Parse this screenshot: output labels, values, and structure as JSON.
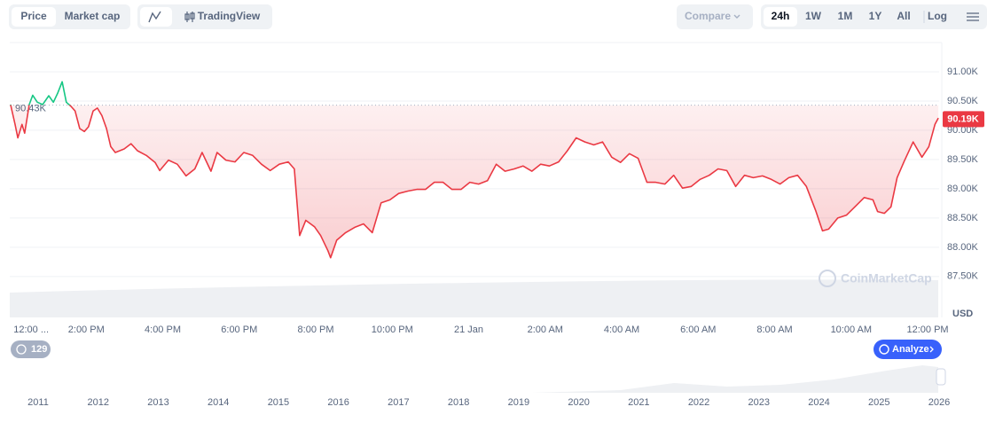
{
  "toolbar": {
    "left": [
      "Price",
      "Market cap"
    ],
    "tradingview": "TradingView",
    "compare": "Compare",
    "ranges": [
      "24h",
      "1W",
      "1M",
      "1Y",
      "All"
    ],
    "log": "Log"
  },
  "chart_data": {
    "type": "line",
    "x": [
      0.02,
      0.14,
      0.21,
      0.32,
      0.39,
      0.51,
      0.6,
      0.72,
      0.86,
      1.02,
      1.14,
      1.25,
      1.37,
      1.48,
      1.6,
      1.71,
      1.83,
      1.95,
      2.06,
      2.18,
      2.29,
      2.41,
      2.53,
      2.64,
      2.76,
      2.99,
      3.17,
      3.34,
      3.57,
      3.8,
      3.92,
      4.15,
      4.38,
      4.61,
      4.84,
      5.03,
      5.26,
      5.42,
      5.65,
      5.89,
      6.12,
      6.35,
      6.58,
      6.81,
      7.05,
      7.28,
      7.44,
      7.58,
      7.74,
      7.97,
      8.13,
      8.32,
      8.39,
      8.55,
      8.78,
      9.02,
      9.25,
      9.48,
      9.71,
      9.94,
      10.17,
      10.41,
      10.64,
      10.87,
      11.1,
      11.33,
      11.56,
      11.8,
      12.03,
      12.26,
      12.49,
      12.72,
      12.95,
      13.19,
      13.42,
      13.65,
      13.88,
      14.11,
      14.35,
      14.58,
      14.81,
      15.04,
      15.27,
      15.5,
      15.74,
      15.97,
      16.2,
      16.43,
      16.66,
      16.89,
      17.13,
      17.36,
      17.59,
      17.82,
      18.05,
      18.29,
      18.52,
      18.75,
      18.98,
      19.21,
      19.44,
      19.68,
      19.91,
      20.14,
      20.37,
      20.6,
      20.83,
      21.07,
      21.25,
      21.41,
      21.65,
      21.88,
      22.11,
      22.34,
      22.57,
      22.69,
      22.87,
      23.04,
      23.2,
      23.38,
      23.62,
      23.85,
      24.03,
      24.19,
      24.28
    ],
    "values": [
      90440,
      90100,
      89870,
      90100,
      89950,
      90440,
      90600,
      90480,
      90440,
      90590,
      90480,
      90630,
      90830,
      90480,
      90410,
      90330,
      90030,
      89980,
      90060,
      90330,
      90380,
      90250,
      90030,
      89720,
      89620,
      89680,
      89770,
      89650,
      89570,
      89450,
      89310,
      89490,
      89420,
      89220,
      89340,
      89620,
      89300,
      89620,
      89490,
      89460,
      89620,
      89570,
      89420,
      89310,
      89420,
      89460,
      89340,
      88200,
      88460,
      88350,
      88200,
      87940,
      87820,
      88120,
      88250,
      88340,
      88400,
      88250,
      88760,
      88810,
      88920,
      88960,
      88990,
      88990,
      89110,
      89110,
      88990,
      88990,
      89110,
      89080,
      89140,
      89420,
      89300,
      89340,
      89390,
      89300,
      89420,
      89390,
      89460,
      89650,
      89870,
      89800,
      89750,
      89800,
      89540,
      89450,
      89600,
      89520,
      89110,
      89110,
      89080,
      89230,
      89010,
      89040,
      89160,
      89230,
      89340,
      89310,
      89040,
      89230,
      89190,
      89220,
      89160,
      89080,
      89190,
      89230,
      89040,
      88630,
      88280,
      88310,
      88500,
      88550,
      88700,
      88850,
      88810,
      88610,
      88580,
      88690,
      89190,
      89460,
      89800,
      89540,
      89720,
      90100,
      90210
    ],
    "color": "#ea3943",
    "up_color": "#16c784",
    "baseline": {
      "value": 90430,
      "label": "90.43K"
    },
    "last": {
      "value": 90190,
      "label": "90.19K"
    },
    "xlim": [
      0,
      24.3
    ],
    "xticks": [
      {
        "value": 0.56,
        "label": "12:00 ..."
      },
      {
        "value": 2,
        "label": "2:00 PM"
      },
      {
        "value": 4,
        "label": "4:00 PM"
      },
      {
        "value": 6,
        "label": "6:00 PM"
      },
      {
        "value": 8,
        "label": "8:00 PM"
      },
      {
        "value": 10,
        "label": "10:00 PM"
      },
      {
        "value": 12,
        "label": "21 Jan"
      },
      {
        "value": 14,
        "label": "2:00 AM"
      },
      {
        "value": 16,
        "label": "4:00 AM"
      },
      {
        "value": 18,
        "label": "6:00 AM"
      },
      {
        "value": 20,
        "label": "8:00 AM"
      },
      {
        "value": 22,
        "label": "10:00 AM"
      },
      {
        "value": 24,
        "label": "12:00 PM"
      }
    ],
    "ylim": [
      86800,
      91500
    ],
    "yticks": [
      {
        "value": 87500,
        "label": "87.50K"
      },
      {
        "value": 88000,
        "label": "88.00K"
      },
      {
        "value": 88500,
        "label": "88.50K"
      },
      {
        "value": 89000,
        "label": "89.00K"
      },
      {
        "value": 89500,
        "label": "89.50K"
      },
      {
        "value": 90000,
        "label": "90.00K"
      },
      {
        "value": 90500,
        "label": "90.50K"
      },
      {
        "value": 91000,
        "label": "91.00K"
      }
    ],
    "y_unit": "USD",
    "watermark": "CoinMarketCap",
    "grid": true
  },
  "badge": 129,
  "analyze": "Analyze",
  "navigator": {
    "years": [
      2011,
      2012,
      2013,
      2014,
      2015,
      2016,
      2017,
      2018,
      2019,
      2020,
      2021,
      2022,
      2023,
      2024,
      2025,
      2026
    ]
  }
}
